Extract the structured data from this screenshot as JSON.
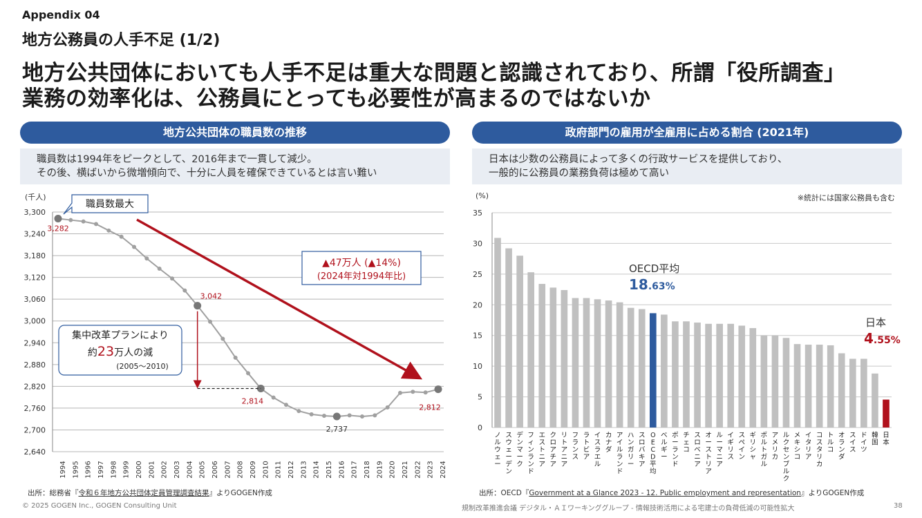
{
  "header": {
    "appendix": "Appendix 04",
    "subtitle": "地方公務員の人手不足 (1/2)",
    "headline_line1": "地方公共団体においても人手不足は重大な問題と認識されており、所謂「役所調査」",
    "headline_line2": "業務の効率化は、公務員にとっても必要性が高まるのではないか"
  },
  "left_panel": {
    "title": "地方公共団体の職員数の推移",
    "summary_line1": "職員数は1994年をピークとして、2016年まで一貫して減少。",
    "summary_line2": "その後、横ばいから微増傾向で、十分に人員を確保できているとは言い難い",
    "callout_peak": "職員数最大",
    "callout_decline_line1": "▲47万人 (▲14%)",
    "callout_decline_line2": "(2024年対1994年比)",
    "callout_plan_line1": "集中改革プランにより",
    "callout_plan_pre": "約",
    "callout_plan_num": "23",
    "callout_plan_post": "万人の減",
    "callout_plan_line3": "(2005～2010)",
    "source_pre": "出所：総務省『",
    "source_link": "令和６年地方公共団体定員管理調査結果",
    "source_post": "』よりGOGEN作成"
  },
  "right_panel": {
    "title": "政府部門の雇用が全雇用に占める割合 (2021年)",
    "summary_line1": "日本は少数の公務員によって多くの行政サービスを提供しており、",
    "summary_line2": "一般的に公務員の業務負荷は極めて高い",
    "note": "※統計には国家公務員も含む",
    "oecd_label": "OECD平均",
    "oecd_value_main": "18",
    "oecd_value_frac": ".63%",
    "japan_label": "日本",
    "japan_value_main": "4",
    "japan_value_frac": ".55%",
    "source_pre": "出所：OECD『",
    "source_link": "Government at a Glance 2023 - 12. Public employment and representation",
    "source_post": "』よりGOGEN作成"
  },
  "footer": {
    "copyright": "© 2025 GOGEN Inc., GOGEN Consulting Unit",
    "meeting": "規制改革推進会議 デジタル・ＡＩワーキンググループ - 情報技術活用による宅建士の負荷低減の可能性拡大",
    "page": "38"
  },
  "colors": {
    "navy": "#2e5b9e",
    "red": "#b0111c",
    "gray_bar": "#c0c0c0",
    "line_gray": "#a0a0a0"
  },
  "chart_data": [
    {
      "type": "line",
      "title": "地方公共団体の職員数の推移",
      "ylabel": "(千人)",
      "ylim": [
        2640,
        3300
      ],
      "yticks": [
        "3,300",
        "3,240",
        "3,180",
        "3,120",
        "3,060",
        "3,000",
        "2,940",
        "2,880",
        "2,820",
        "2,760",
        "2,700",
        "2,640"
      ],
      "x": [
        "1994",
        "1995",
        "1996",
        "1997",
        "1998",
        "1999",
        "2000",
        "2001",
        "2002",
        "2003",
        "2004",
        "2005",
        "2006",
        "2007",
        "2008",
        "2009",
        "2010",
        "2011",
        "2012",
        "2013",
        "2014",
        "2015",
        "2016",
        "2017",
        "2018",
        "2019",
        "2020",
        "2021",
        "2022",
        "2023",
        "2024"
      ],
      "values": [
        3282,
        3278,
        3274,
        3267,
        3249,
        3232,
        3204,
        3172,
        3144,
        3117,
        3084,
        3042,
        2998,
        2951,
        2899,
        2856,
        2814,
        2789,
        2769,
        2752,
        2743,
        2739,
        2737,
        2740,
        2737,
        2740,
        2762,
        2802,
        2805,
        2803,
        2812
      ],
      "labels": [
        {
          "x": "1994",
          "text": "3,282"
        },
        {
          "x": "2005",
          "text": "3,042"
        },
        {
          "x": "2010",
          "text": "2,814"
        },
        {
          "x": "2016",
          "text": "2,737"
        },
        {
          "x": "2024",
          "text": "2,812"
        }
      ],
      "grid": true
    },
    {
      "type": "bar",
      "title": "政府部門の雇用が全雇用に占める割合 (2021年)",
      "ylabel": "(%)",
      "ylim": [
        0,
        35
      ],
      "yticks": [
        "35",
        "30",
        "25",
        "20",
        "15",
        "10",
        "5",
        "0"
      ],
      "categories": [
        "ノルウェー",
        "スウェーデン",
        "デンマーク",
        "フィンランド",
        "エストニア",
        "クロアチア",
        "リトアニア",
        "フランス",
        "ラトビア",
        "イスラエル",
        "カナダ",
        "アイルランド",
        "ハンガリー",
        "スロバキア",
        "OECD平均",
        "ベルギー",
        "ポーランド",
        "チェコ",
        "スロベニア",
        "オーストリア",
        "ルーマニア",
        "イギリス",
        "スペイン",
        "ギリシャ",
        "ポルトガル",
        "アメリカ",
        "ルクセンブルク",
        "メキシコ",
        "イタリア",
        "コスタリカ",
        "トルコ",
        "オランダ",
        "スイス",
        "ドイツ",
        "韓国",
        "日本"
      ],
      "values": [
        30.9,
        29.2,
        28.0,
        25.3,
        23.4,
        22.8,
        22.4,
        21.1,
        21.1,
        20.9,
        20.7,
        20.4,
        19.5,
        19.3,
        18.63,
        18.4,
        17.3,
        17.3,
        17.1,
        16.9,
        16.9,
        16.9,
        16.6,
        16.2,
        15.0,
        15.0,
        14.6,
        13.6,
        13.5,
        13.5,
        13.4,
        12.1,
        11.2,
        11.2,
        8.8,
        4.55
      ],
      "highlight": {
        "OECD平均": "#2e5b9e",
        "日本": "#b0111c"
      },
      "grid": true
    }
  ]
}
